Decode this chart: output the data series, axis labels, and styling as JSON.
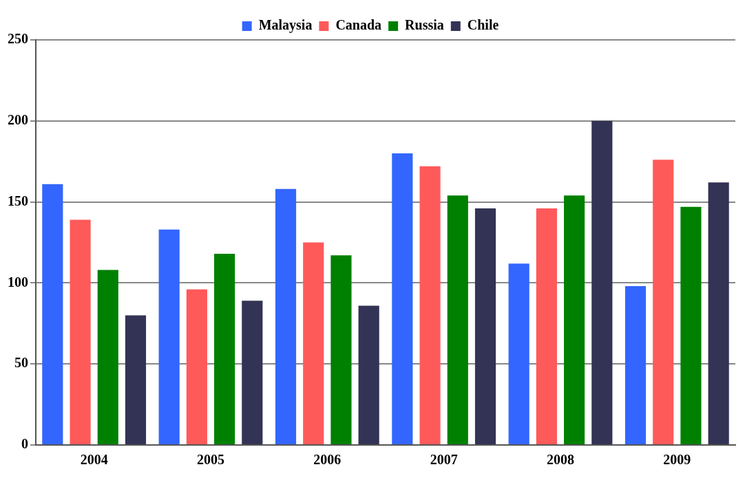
{
  "chart_data": {
    "type": "bar",
    "categories": [
      "2004",
      "2005",
      "2006",
      "2007",
      "2008",
      "2009"
    ],
    "series": [
      {
        "name": "Malaysia",
        "color": "#3366ff",
        "values": [
          161,
          133,
          158,
          180,
          112,
          98
        ]
      },
      {
        "name": "Canada",
        "color": "#ff5a5a",
        "values": [
          139,
          96,
          125,
          172,
          146,
          176
        ]
      },
      {
        "name": "Russia",
        "color": "#008000",
        "values": [
          108,
          118,
          117,
          154,
          154,
          147
        ]
      },
      {
        "name": "Chile",
        "color": "#333355",
        "values": [
          80,
          89,
          86,
          146,
          200,
          162
        ]
      }
    ],
    "ylim": [
      0,
      250
    ],
    "yticks": [
      0,
      50,
      100,
      150,
      200,
      250
    ],
    "grid": "y",
    "legend": "top"
  }
}
